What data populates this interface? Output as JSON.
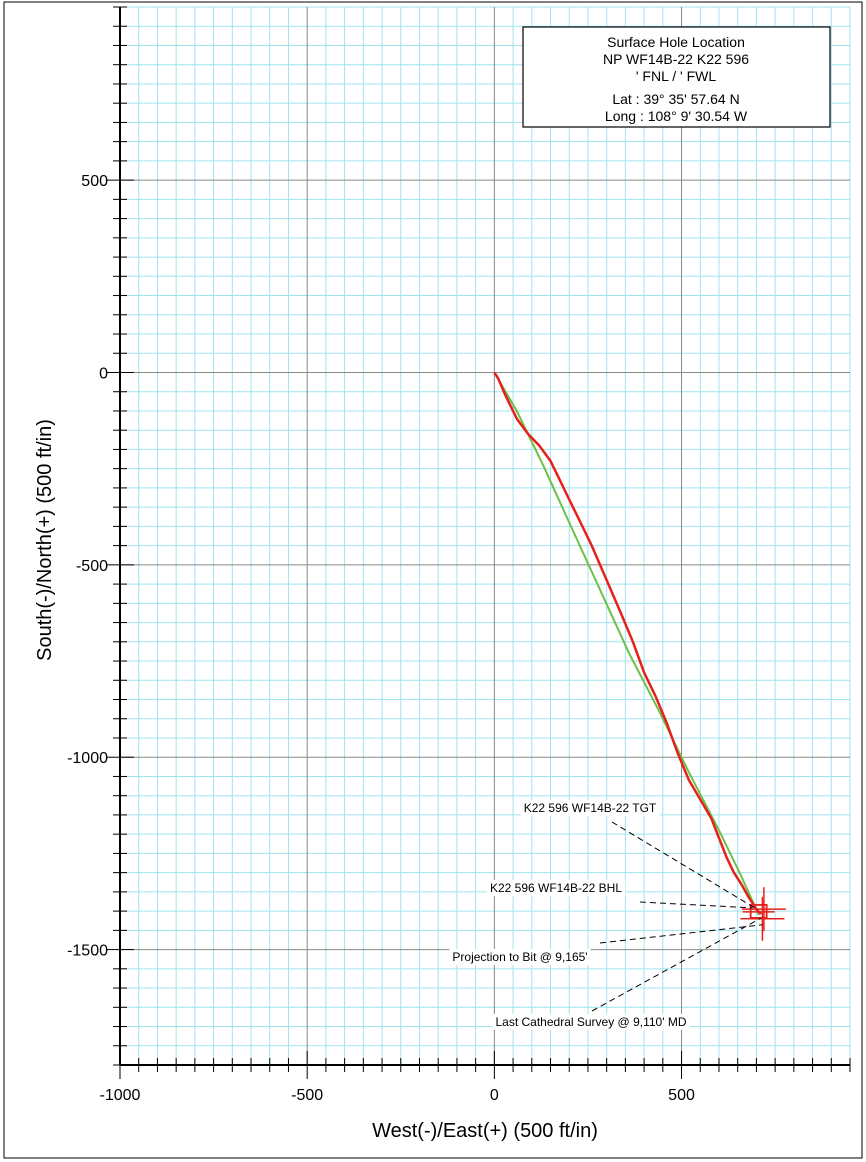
{
  "chart_data": {
    "type": "line",
    "title": "",
    "xlabel": "West(-)/East(+) (500 ft/in)",
    "ylabel": "South(-)/North(+) (500 ft/in)",
    "xlim": [
      -1000,
      950
    ],
    "ylim": [
      -1800,
      950
    ],
    "x_ticks": [
      -1000,
      -500,
      0,
      500
    ],
    "x_tick_labels": [
      "-1000",
      "-500",
      "0",
      "500"
    ],
    "y_ticks": [
      500,
      0,
      -500,
      -1000,
      -1500
    ],
    "y_tick_labels": [
      "500",
      "0",
      "-500",
      "-1000",
      "-1500"
    ],
    "grid": {
      "major_step": 500,
      "minor_step": 50
    },
    "colors": {
      "plan": "#6cc04a",
      "actual": "#e8201c",
      "grid_minor": "#9fe3ef",
      "grid_major": "#888888"
    },
    "series": [
      {
        "role": "plan",
        "color": "#6cc04a",
        "x": [
          0,
          60,
          130,
          200,
          280,
          360,
          440,
          520,
          600,
          660,
          706
        ],
        "y": [
          0,
          -100,
          -240,
          -390,
          -560,
          -730,
          -880,
          -1040,
          -1190,
          -1310,
          -1410
        ]
      },
      {
        "role": "actual",
        "color": "#e8201c",
        "x": [
          0,
          10,
          30,
          60,
          90,
          120,
          150,
          175,
          200,
          230,
          260,
          300,
          340,
          370,
          400,
          430,
          460,
          490,
          520,
          550,
          580,
          600,
          620,
          640,
          660,
          680,
          700,
          712
        ],
        "y": [
          0,
          -15,
          -60,
          -120,
          -160,
          -190,
          -230,
          -280,
          -330,
          -390,
          -450,
          -540,
          -630,
          -700,
          -780,
          -840,
          -910,
          -990,
          -1060,
          -1110,
          -1160,
          -1210,
          -1260,
          -1300,
          -1330,
          -1365,
          -1395,
          -1408
        ]
      }
    ],
    "markers": [
      {
        "type": "target-box",
        "x": 706,
        "y": -1402
      },
      {
        "type": "crosshair",
        "x": 716,
        "y": -1420
      },
      {
        "type": "crosshair",
        "x": 720,
        "y": -1395
      }
    ],
    "annotations": [
      {
        "text": "K22 596 WF14B-22 TGT",
        "target": [
          706,
          -1402
        ]
      },
      {
        "text": "K22 596 WF14B-22 BHL",
        "target": [
          706,
          -1402
        ]
      },
      {
        "text": "Projection to Bit @ 9,165'",
        "target": [
          716,
          -1420
        ]
      },
      {
        "text": "Last Cathedral Survey @ 9,110' MD",
        "target": [
          712,
          -1408
        ]
      }
    ],
    "info_box": {
      "lines": [
        "Surface Hole Location",
        "NP WF14B-22 K22 596",
        "' FNL / ' FWL",
        "Lat :  39° 35' 57.64 N",
        "Long :  108° 9' 30.54 W"
      ]
    }
  }
}
